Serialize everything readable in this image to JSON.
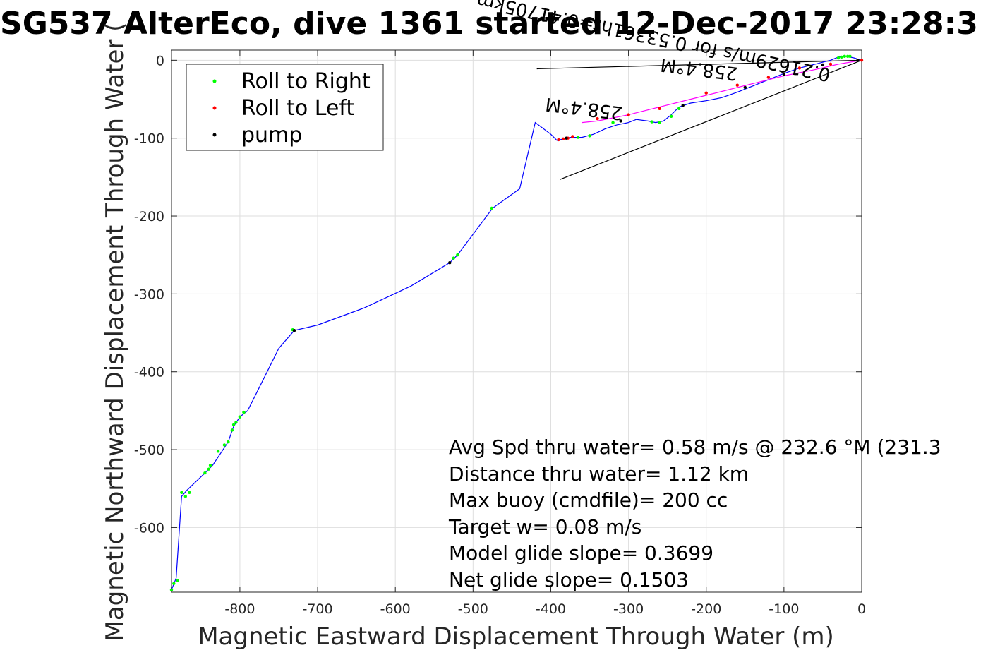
{
  "chart_data": {
    "type": "line",
    "title": "SG537 AlterEco, dive 1361 started 12-Dec-2017 23:28:3",
    "xlabel": "Magnetic Eastward Displacement Through Water (m)",
    "ylabel": "Magnetic Northward Displacement Through Water (",
    "xlim": [
      -888,
      0
    ],
    "ylim": [
      -683,
      13
    ],
    "xticks": [
      -800,
      -700,
      -600,
      -500,
      -400,
      -300,
      -200,
      -100,
      0
    ],
    "yticks": [
      0,
      -100,
      -200,
      -300,
      -400,
      -500,
      -600
    ],
    "grid": true,
    "legend_position": "top-left",
    "legend": [
      {
        "label": "Roll to Right",
        "color": "#00ff00"
      },
      {
        "label": "Roll to Left",
        "color": "#ff0000"
      },
      {
        "label": "pump",
        "color": "#000000"
      }
    ],
    "series": [
      {
        "style": "blue-line",
        "color": "#0000ff",
        "x": [
          0,
          -10,
          -20,
          -30,
          -40,
          -60,
          -80,
          -100,
          -120,
          -140,
          -160,
          -180,
          -200,
          -220,
          -235,
          -245,
          -255,
          -265,
          -275,
          -290,
          -300,
          -315,
          -330,
          -345,
          -360,
          -375,
          -392,
          -400,
          -420,
          -440,
          -475,
          -520,
          -530,
          -580,
          -640,
          -700,
          -730,
          -750,
          -770,
          -790,
          -800,
          -808,
          -815,
          -825,
          -835,
          -845,
          -868,
          -875,
          -882,
          -888
        ],
        "y": [
          0,
          3,
          5,
          4,
          0,
          -5,
          -10,
          -17,
          -25,
          -33,
          -41,
          -48,
          -52,
          -55,
          -60,
          -70,
          -78,
          -80,
          -78,
          -76,
          -80,
          -83,
          -88,
          -95,
          -99,
          -99,
          -103,
          -95,
          -80,
          -165,
          -190,
          -250,
          -260,
          -290,
          -318,
          -340,
          -347,
          -370,
          -410,
          -450,
          -458,
          -470,
          -490,
          -505,
          -520,
          -530,
          -552,
          -560,
          -665,
          -680
        ]
      },
      {
        "style": "magenta-line",
        "color": "#ff00ff",
        "x": [
          0,
          -30,
          -60,
          -100,
          -140,
          -180,
          -220,
          -260,
          -300,
          -340,
          -360
        ],
        "y": [
          0,
          -5,
          -12,
          -20,
          -30,
          -40,
          -50,
          -60,
          -70,
          -78,
          -80
        ]
      }
    ],
    "green_points": {
      "x": [
        -15,
        -18,
        -22,
        -26,
        -30,
        -235,
        -245,
        -260,
        -270,
        -320,
        -350,
        -365,
        -476,
        -520,
        -525,
        -732,
        -795,
        -800,
        -805,
        -808,
        -810,
        -815,
        -820,
        -828,
        -838,
        -840,
        -845,
        -865,
        -870,
        -875,
        -880,
        -885,
        -888
      ],
      "y": [
        5,
        5,
        5,
        4,
        3,
        -62,
        -72,
        -80,
        -79,
        -80,
        -97,
        -99,
        -190,
        -250,
        -254,
        -346,
        -452,
        -458,
        -465,
        -468,
        -475,
        -490,
        -494,
        -502,
        -520,
        -525,
        -530,
        -555,
        -560,
        -555,
        -668,
        -672,
        -680
      ]
    },
    "red_points": {
      "x": [
        0,
        -40,
        -80,
        -120,
        -160,
        -200,
        -260,
        -300,
        -340,
        -372,
        -378,
        -384,
        -390
      ],
      "y": [
        0,
        -5,
        -10,
        -22,
        -32,
        -42,
        -62,
        -70,
        -75,
        -98,
        -100,
        -101,
        -102
      ]
    },
    "black_points": {
      "x": [
        -5,
        -50,
        -100,
        -150,
        -230,
        -310,
        -380,
        -530,
        -730
      ],
      "y": [
        0,
        -6,
        -18,
        -35,
        -58,
        -78,
        -100,
        -260,
        -347
      ]
    },
    "lines": [
      {
        "x": [
          0,
          -418
        ],
        "y": [
          0,
          -11
        ],
        "color": "#000000"
      },
      {
        "x": [
          0,
          -388
        ],
        "y": [
          0,
          -153
        ],
        "color": "#000000"
      }
    ],
    "flipped_labels": [
      "258.4°M",
      "258.4°M",
      "0.21629m/s for 0.53361hr=0.41705km"
    ],
    "annotations": [
      "Avg Spd thru water=  0.58 m/s @ 232.6 °M (231.3",
      "Distance thru water=  1.12 km",
      "Max buoy (cmdfile)= 200 cc",
      "Target w= 0.08 m/s",
      "Model glide slope= 0.3699",
      "Net glide slope= 0.1503"
    ]
  }
}
